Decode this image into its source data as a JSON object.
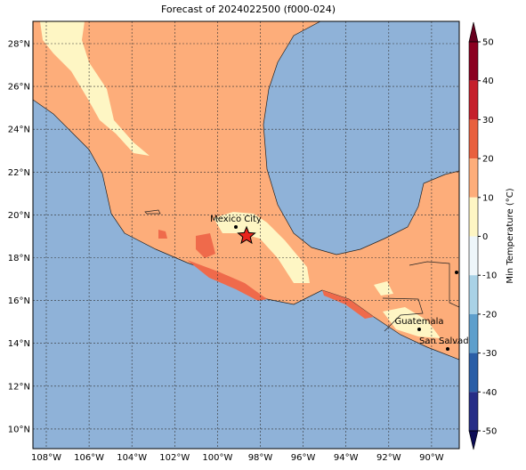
{
  "title": "Forecast of 2024022500 (f000-024)",
  "map": {
    "lon_labels": [
      "108°W",
      "106°W",
      "104°W",
      "102°W",
      "100°W",
      "98°W",
      "96°W",
      "94°W",
      "92°W",
      "90°W"
    ],
    "lat_labels": [
      "28°N",
      "26°N",
      "24°N",
      "22°N",
      "20°N",
      "18°N",
      "16°N",
      "14°N",
      "12°N",
      "10°N"
    ],
    "cities": [
      "Mexico City",
      "Guatemala",
      "San Salvador"
    ]
  },
  "colorbar": {
    "label": "Min Temperature (°C)",
    "ticks": [
      50,
      40,
      30,
      20,
      10,
      0,
      -10,
      -20,
      -30,
      -40,
      -50
    ]
  }
}
